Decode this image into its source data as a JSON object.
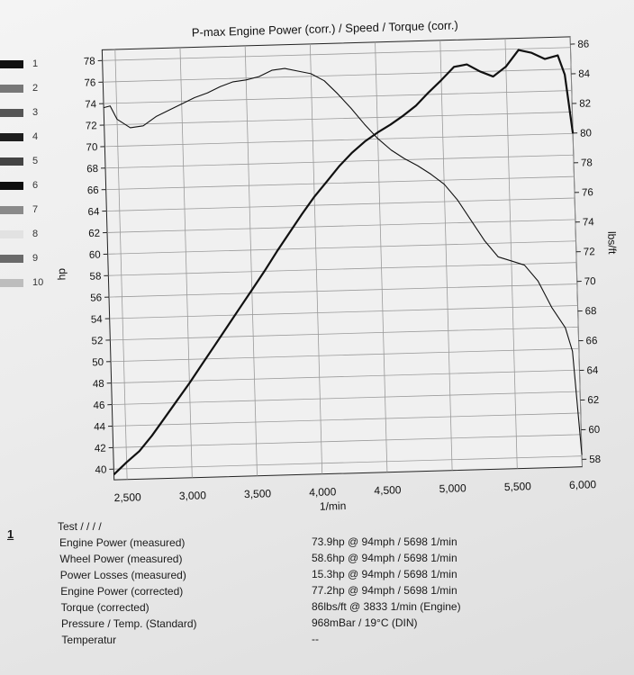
{
  "chart_data": {
    "type": "line",
    "title": "P-max Engine Power  (corr.) / Speed / Torque (corr.)",
    "xlabel": "1/min",
    "ylabel_left": "hp",
    "ylabel_right": "lbs/ft",
    "xlim": [
      2400,
      6000
    ],
    "ylim_left": [
      39,
      79
    ],
    "ylim_right": [
      57.5,
      86.5
    ],
    "x_ticks": [
      "2,500",
      "3,000",
      "3,500",
      "4,000",
      "4,500",
      "5,000",
      "5,500",
      "6,000"
    ],
    "y_ticks_left": [
      "40",
      "42",
      "44",
      "46",
      "48",
      "50",
      "52",
      "54",
      "56",
      "58",
      "60",
      "62",
      "64",
      "66",
      "68",
      "70",
      "72",
      "74",
      "76",
      "78"
    ],
    "y_ticks_right": [
      "58",
      "60",
      "62",
      "64",
      "66",
      "68",
      "70",
      "72",
      "74",
      "76",
      "78",
      "80",
      "82",
      "84",
      "86"
    ],
    "grid": true,
    "series": [
      {
        "axis": "left",
        "x": [
          2400,
          2500,
          2600,
          2700,
          2800,
          2900,
          3000,
          3100,
          3200,
          3300,
          3400,
          3500,
          3600,
          3700,
          3800,
          3900,
          4000,
          4100,
          4200,
          4300,
          4400,
          4500,
          4600,
          4700,
          4800,
          4900,
          5000,
          5100,
          5200,
          5300,
          5400,
          5500,
          5600,
          5700,
          5800,
          5900,
          5950,
          6000
        ],
        "y": [
          39.5,
          40.6,
          41.6,
          43.0,
          44.6,
          46.2,
          47.8,
          49.5,
          51.2,
          52.9,
          54.6,
          56.3,
          58.0,
          59.8,
          61.5,
          63.2,
          64.8,
          66.2,
          67.6,
          68.8,
          69.8,
          70.6,
          71.3,
          72.1,
          73.0,
          74.2,
          75.3,
          76.5,
          76.7,
          76.0,
          75.5,
          76.4,
          77.9,
          77.6,
          77.0,
          77.3,
          75.5,
          70.0
        ]
      },
      {
        "axis": "right",
        "x": [
          2400,
          2450,
          2500,
          2600,
          2700,
          2800,
          2900,
          3000,
          3100,
          3200,
          3300,
          3400,
          3500,
          3600,
          3700,
          3800,
          3900,
          4000,
          4100,
          4200,
          4300,
          4400,
          4500,
          4600,
          4700,
          4800,
          4900,
          5000,
          5100,
          5200,
          5300,
          5400,
          5500,
          5600,
          5700,
          5800,
          5900,
          5950,
          6000
        ],
        "y": [
          82.6,
          82.7,
          81.8,
          81.2,
          81.3,
          81.9,
          82.3,
          82.7,
          83.1,
          83.4,
          83.8,
          84.1,
          84.2,
          84.4,
          84.8,
          84.9,
          84.7,
          84.5,
          84.0,
          83.1,
          82.1,
          81.0,
          80.0,
          79.2,
          78.6,
          78.1,
          77.5,
          76.8,
          75.7,
          74.3,
          72.9,
          71.8,
          71.5,
          71.2,
          70.1,
          68.3,
          66.9,
          65.3,
          58.3
        ]
      }
    ]
  },
  "legend": {
    "numbers": [
      "1",
      "2",
      "3",
      "4",
      "5",
      "6",
      "7",
      "8",
      "9",
      "10"
    ],
    "colors": [
      "#111111",
      "#777777",
      "#555555",
      "#1e1e1e",
      "#444444",
      "#0d0d0d",
      "#8a8a8a",
      "#e2e2e2",
      "#6a6a6a",
      "#bdbdbd"
    ]
  },
  "report": {
    "test_number": "1",
    "test_label": "Test / / / /",
    "rows": [
      {
        "label": "Engine Power (measured)",
        "value": "73.9hp @ 94mph / 5698 1/min"
      },
      {
        "label": "Wheel Power (measured)",
        "value": "58.6hp @ 94mph / 5698 1/min"
      },
      {
        "label": "Power Losses (measured)",
        "value": "15.3hp @ 94mph / 5698 1/min"
      },
      {
        "label": "Engine Power (corrected)",
        "value": "77.2hp @ 94mph / 5698 1/min"
      },
      {
        "label": "Torque (corrected)",
        "value": "86lbs/ft @ 3833 1/min (Engine)"
      },
      {
        "label": "Pressure / Temp. (Standard)",
        "value": "968mBar / 19°C (DIN)"
      },
      {
        "label": "Temperatur",
        "value": "--"
      }
    ]
  }
}
